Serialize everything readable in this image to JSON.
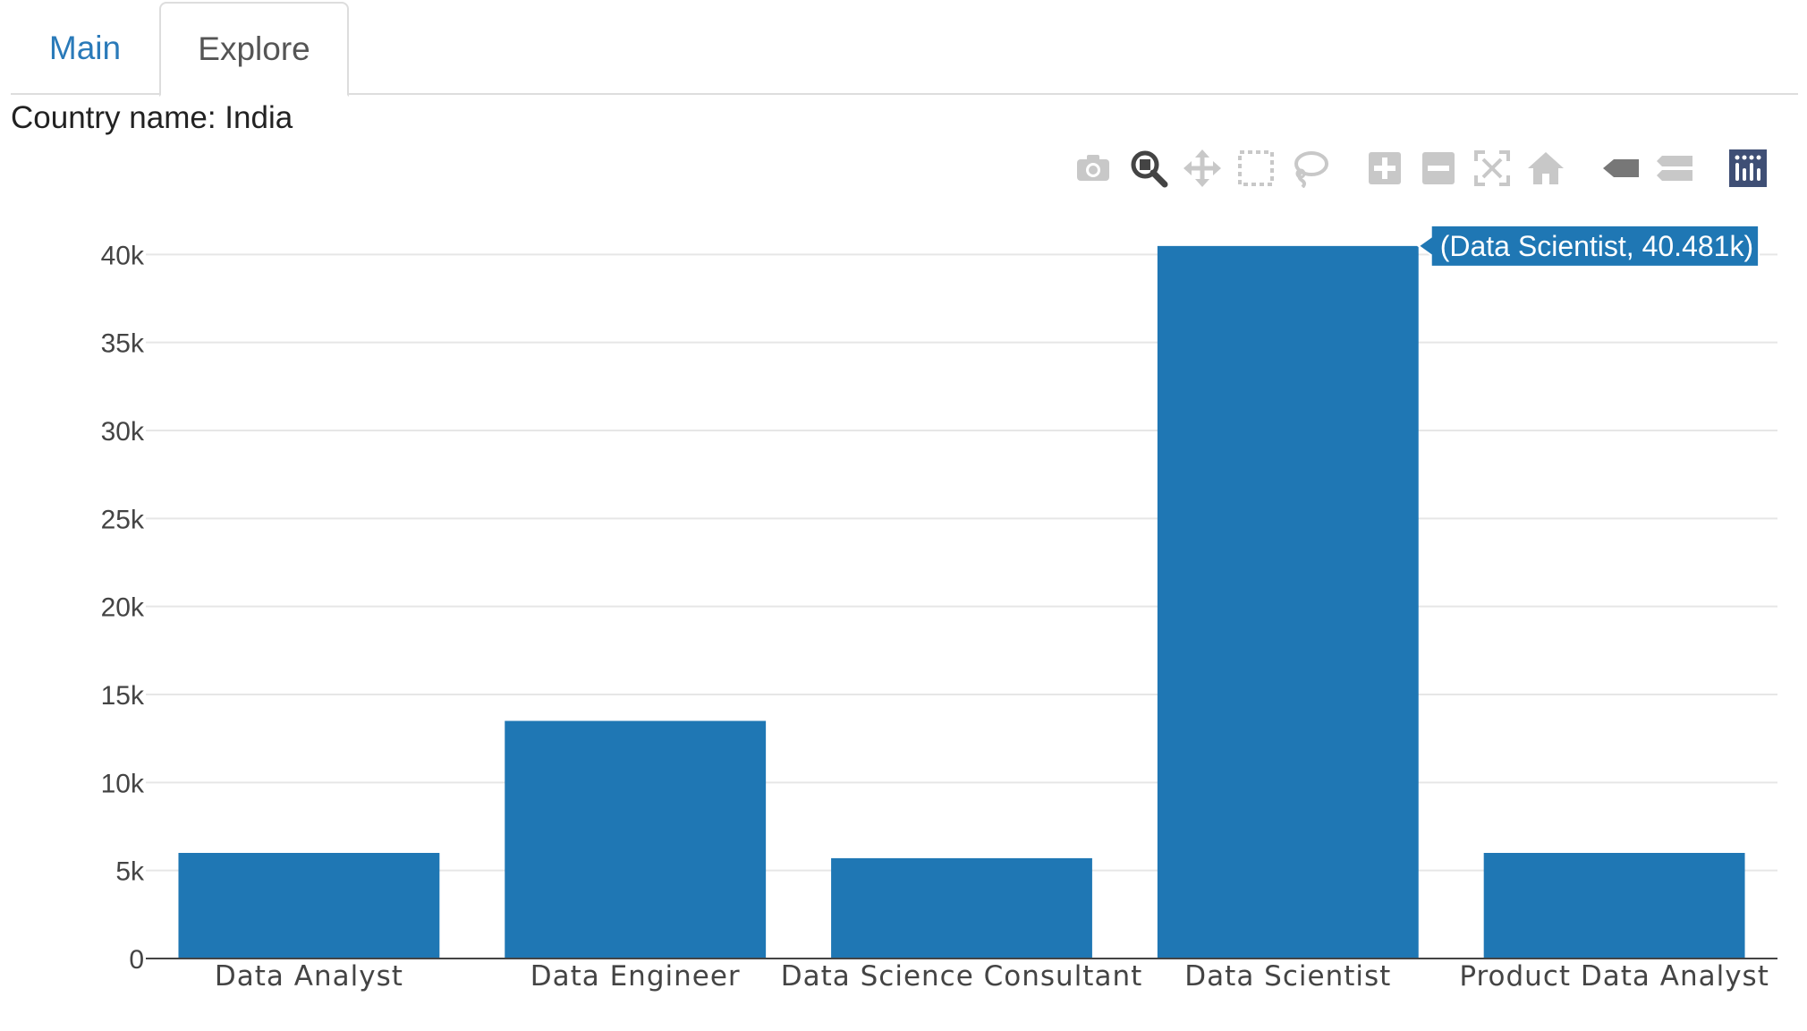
{
  "tabs": [
    {
      "label": "Main",
      "active": false
    },
    {
      "label": "Explore",
      "active": true
    }
  ],
  "country": {
    "label": "Country name:",
    "value": "India"
  },
  "modebar": {
    "icons": [
      "camera-icon",
      "zoom-icon",
      "pan-icon",
      "box-select-icon",
      "lasso-icon",
      "zoom-in-icon",
      "zoom-out-icon",
      "autoscale-icon",
      "reset-axes-icon",
      "hover-closest-icon",
      "hover-compare-icon",
      "plotly-logo-icon"
    ],
    "active": "zoom-icon"
  },
  "colors": {
    "bar": "#1f77b4",
    "grid": "#e6e6e6",
    "tab_active_text": "#555555",
    "tab_link": "#2a7ab9",
    "modebar_icon": "#c8c8c8",
    "modebar_active": "#444444",
    "logo_bg": "#3f4f75"
  },
  "chart_data": {
    "type": "bar",
    "categories": [
      "Data Analyst",
      "Data Engineer",
      "Data Science Consultant",
      "Data Scientist",
      "Product Data Analyst"
    ],
    "values": [
      6000,
      13500,
      5700,
      40481,
      6000
    ],
    "ylim": [
      0,
      42000
    ],
    "yticks": [
      0,
      5000,
      10000,
      15000,
      20000,
      25000,
      30000,
      35000,
      40000
    ],
    "ytick_labels": [
      "0",
      "5k",
      "10k",
      "15k",
      "20k",
      "25k",
      "30k",
      "35k",
      "40k"
    ],
    "grid": true,
    "hover": {
      "category": "Data Scientist",
      "label": "(Data Scientist, 40.481k)"
    }
  }
}
